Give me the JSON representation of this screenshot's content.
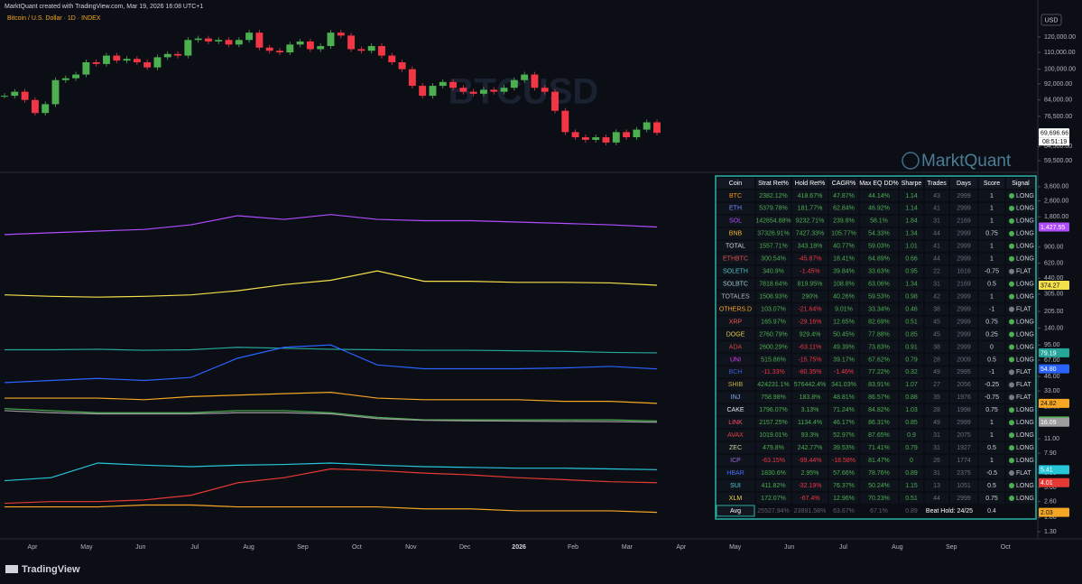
{
  "header": {
    "credit": "MarktQuant created with TradingView.com, Mar 19, 2026 16:08 UTC+1",
    "symbol": "Bitcoin / U.S. Dollar · 1D · INDEX"
  },
  "watermarks": {
    "symbol": "BTCUSD",
    "brand": "MarktQuant"
  },
  "currency": "USD",
  "footer": {
    "brand": "TradingView"
  },
  "price_pane": {
    "scale": "log",
    "ylim": [
      56000,
      148000
    ],
    "yticks": [
      {
        "value": 120000,
        "label": "120,000.00"
      },
      {
        "value": 110000,
        "label": "110,000.00"
      },
      {
        "value": 100000,
        "label": "100,000.00"
      },
      {
        "value": 92000,
        "label": "92,000.00"
      },
      {
        "value": 84000,
        "label": "84,000.00"
      },
      {
        "value": 76500,
        "label": "76,500.00"
      },
      {
        "value": 64500,
        "label": "64,500.00"
      },
      {
        "value": 59500,
        "label": "59,500.00"
      }
    ],
    "last_price": {
      "value": 69719.29,
      "label": "69,719.29"
    },
    "prev_price": {
      "value": 69696.66,
      "label": "69,696.66"
    },
    "countdown": "08:51:19",
    "up_color": "#4caf50",
    "down_color": "#f23645",
    "closes": [
      86000,
      88000,
      84000,
      78000,
      82000,
      94000,
      95000,
      97000,
      104000,
      103000,
      108000,
      105000,
      106000,
      104000,
      101000,
      107000,
      109000,
      108000,
      118000,
      119000,
      117000,
      118000,
      115000,
      118000,
      123000,
      113000,
      111000,
      110000,
      115000,
      117000,
      112000,
      114000,
      123000,
      121000,
      112000,
      111000,
      114000,
      108000,
      104000,
      100000,
      91000,
      86000,
      91000,
      93000,
      90000,
      88000,
      87000,
      89000,
      88000,
      90000,
      94000,
      97000,
      90000,
      88000,
      79000,
      70000,
      68000,
      67000,
      68000,
      66000,
      70000,
      68000,
      71000,
      74000,
      69719
    ]
  },
  "equity_pane": {
    "scale": "log",
    "ylim": [
      1.15,
      4900
    ],
    "yticks": [
      {
        "value": 3600,
        "label": "3,600.00"
      },
      {
        "value": 2600,
        "label": "2,600.00"
      },
      {
        "value": 1800,
        "label": "1,800.00"
      },
      {
        "value": 900,
        "label": "900.00"
      },
      {
        "value": 620,
        "label": "620.00"
      },
      {
        "value": 440,
        "label": "440.00"
      },
      {
        "value": 305,
        "label": "305.00"
      },
      {
        "value": 205,
        "label": "205.00"
      },
      {
        "value": 140,
        "label": "140.00"
      },
      {
        "value": 95,
        "label": "95.00"
      },
      {
        "value": 67,
        "label": "67.00"
      },
      {
        "value": 46,
        "label": "46.00"
      },
      {
        "value": 33,
        "label": "33.00"
      },
      {
        "value": 23,
        "label": "23.00"
      },
      {
        "value": 11,
        "label": "11.00"
      },
      {
        "value": 7.9,
        "label": "7.90"
      },
      {
        "value": 5,
        "label": "5.00"
      },
      {
        "value": 3.6,
        "label": "3.60"
      },
      {
        "value": 2.6,
        "label": "2.60"
      },
      {
        "value": 1.8,
        "label": "1.80"
      },
      {
        "value": 1.3,
        "label": "1.30"
      }
    ],
    "lines": [
      {
        "color": "#b04cff",
        "values": [
          1200,
          1250,
          1300,
          1350,
          1500,
          1850,
          1700,
          1900,
          1700,
          1650,
          1650,
          1600,
          1550,
          1500,
          1427.55
        ],
        "badge": {
          "value": 1427.55,
          "label": "1,427.55"
        }
      },
      {
        "color": "#f5e04a",
        "values": [
          300,
          290,
          285,
          290,
          300,
          330,
          380,
          420,
          520,
          410,
          410,
          400,
          400,
          395,
          374.27
        ],
        "badge": {
          "value": 374.27,
          "label": "374.27"
        }
      },
      {
        "color": "#26a69a",
        "values": [
          85,
          85,
          86,
          84,
          85,
          90,
          88,
          86,
          85,
          84,
          84,
          83,
          82,
          80,
          79.19
        ],
        "badge": {
          "value": 79.19,
          "label": "79.19"
        }
      },
      {
        "color": "#2962ff",
        "values": [
          40,
          42,
          44,
          42,
          45,
          70,
          90,
          95,
          60,
          55,
          55,
          55,
          56,
          58,
          54.8
        ],
        "badge": {
          "value": 54.8,
          "label": "54.80"
        }
      },
      {
        "color": "#f5a623",
        "values": [
          28,
          28,
          28,
          27,
          29,
          30,
          31,
          32,
          28,
          27,
          27,
          27,
          26,
          26,
          24.82
        ],
        "badge": {
          "value": 24.82,
          "label": "24.82"
        }
      },
      {
        "color": "#4caf50",
        "values": [
          22,
          21,
          20,
          20,
          20,
          21,
          21,
          20,
          18,
          17,
          17,
          17,
          17,
          17,
          16.58
        ],
        "badge": {
          "value": 16.58,
          "label": "16.58"
        }
      },
      {
        "color": "#9e9e9e",
        "values": [
          21,
          20,
          19.5,
          19.5,
          19.5,
          20,
          20,
          19.5,
          17.5,
          16.8,
          16.6,
          16.5,
          16.4,
          16.3,
          16.09
        ],
        "badge": {
          "value": 16.09,
          "label": "16.09"
        }
      },
      {
        "color": "#26c6da",
        "values": [
          4.2,
          4.5,
          6.3,
          6,
          5.8,
          6,
          6.1,
          6.3,
          6,
          5.8,
          5.7,
          5.6,
          5.6,
          5.5,
          5.41
        ],
        "badge": {
          "value": 5.41,
          "label": "5.41"
        }
      },
      {
        "color": "#e53935",
        "values": [
          2.5,
          2.6,
          2.6,
          2.7,
          3,
          4,
          4.5,
          5.5,
          5.3,
          5,
          4.8,
          4.5,
          4.3,
          4.1,
          4.01
        ],
        "badge": {
          "value": 4.01,
          "label": "4.01"
        }
      },
      {
        "color": "#f5a623",
        "values": [
          2.3,
          2.3,
          2.3,
          2.4,
          2.4,
          2.3,
          2.3,
          2.3,
          2.3,
          2.2,
          2.2,
          2.1,
          2.1,
          2.1,
          2.03
        ],
        "badge": {
          "value": 2.03,
          "label": "2.03"
        }
      }
    ]
  },
  "xaxis": {
    "labels": [
      "Apr",
      "May",
      "Jun",
      "Jul",
      "Aug",
      "Sep",
      "Oct",
      "Nov",
      "Dec",
      "2026",
      "Feb",
      "Mar",
      "Apr",
      "May",
      "Jun",
      "Jul",
      "Aug",
      "Sep",
      "Oct"
    ],
    "bold": "2026"
  },
  "table": {
    "columns": [
      "Coin",
      "Strat Ret%",
      "Hold Ret%",
      "CAGR%",
      "Max EQ DD%",
      "Sharpe",
      "Trades",
      "Days",
      "Score",
      "Signal"
    ],
    "coin_colors": [
      "#f7931a",
      "#7b8cff",
      "#b04cff",
      "#f3ba2f",
      "#d1d4dc",
      "#e0544f",
      "#4fc3c3",
      "#9ec9c9",
      "#b2b5be",
      "#f5a623",
      "#ef5350",
      "#e6c94c",
      "#d0453f",
      "#e040fb",
      "#3f5bd8",
      "#c9b037",
      "#8ab4f8",
      "#e8e8e8",
      "#ff4d6d",
      "#e84142",
      "#c8d6a0",
      "#9c6ade",
      "#4a6cf7",
      "#4fd1e0",
      "#f5d94a"
    ],
    "rows": [
      [
        "BTC",
        "2382.12%",
        "418.67%",
        "47.87%",
        "44.14%",
        "1.14",
        "43",
        "2999",
        "1",
        "LONG"
      ],
      [
        "ETH",
        "5379.78%",
        "181.77%",
        "62.84%",
        "46.92%",
        "1.14",
        "41",
        "2999",
        "1",
        "LONG"
      ],
      [
        "SOL",
        "142654.88%",
        "9232.71%",
        "239.8%",
        "58.1%",
        "1.84",
        "31",
        "2169",
        "1",
        "LONG"
      ],
      [
        "BNB",
        "37326.91%",
        "7427.33%",
        "105.77%",
        "54.33%",
        "1.34",
        "44",
        "2999",
        "0.75",
        "LONG"
      ],
      [
        "TOTAL",
        "1557.71%",
        "343.18%",
        "40.77%",
        "59.03%",
        "1.01",
        "41",
        "2999",
        "1",
        "LONG"
      ],
      [
        "ETHBTC",
        "300.54%",
        "-45.87%",
        "18.41%",
        "64.89%",
        "0.66",
        "44",
        "2999",
        "1",
        "LONG"
      ],
      [
        "SOLETH",
        "340.9%",
        "-1.45%",
        "39.84%",
        "33.63%",
        "0.95",
        "22",
        "1616",
        "-0.75",
        "FLAT"
      ],
      [
        "SOLBTC",
        "7818.64%",
        "819.95%",
        "108.8%",
        "63.06%",
        "1.34",
        "31",
        "2169",
        "0.5",
        "LONG"
      ],
      [
        "TOTALES",
        "1508.93%",
        "290%",
        "40.26%",
        "59.53%",
        "0.98",
        "42",
        "2999",
        "1",
        "LONG"
      ],
      [
        "OTHERS.D",
        "103.07%",
        "-21.64%",
        "9.01%",
        "33.34%",
        "0.46",
        "38",
        "2999",
        "-1",
        "FLAT"
      ],
      [
        "XRP",
        "165.97%",
        "-29.16%",
        "12.65%",
        "82.69%",
        "0.51",
        "45",
        "2999",
        "0.75",
        "LONG"
      ],
      [
        "DOGE",
        "2760.79%",
        "929.4%",
        "50.45%",
        "77.88%",
        "0.85",
        "45",
        "2999",
        "0.25",
        "LONG"
      ],
      [
        "ADA",
        "2600.29%",
        "-63.11%",
        "49.39%",
        "73.83%",
        "0.91",
        "38",
        "2999",
        "0",
        "LONG"
      ],
      [
        "UNI",
        "515.86%",
        "-15.75%",
        "39.17%",
        "67.62%",
        "0.79",
        "28",
        "2009",
        "0.5",
        "LONG"
      ],
      [
        "BCH",
        "-11.33%",
        "-80.35%",
        "-1.46%",
        "77.22%",
        "0.32",
        "49",
        "2995",
        "-1",
        "FLAT"
      ],
      [
        "SHIB",
        "424231.1%",
        "576442.4%",
        "341.03%",
        "83.91%",
        "1.07",
        "27",
        "2056",
        "-0.25",
        "FLAT"
      ],
      [
        "INJ",
        "758.98%",
        "183.8%",
        "48.81%",
        "86.57%",
        "0.88",
        "35",
        "1976",
        "-0.75",
        "FLAT"
      ],
      [
        "CAKE",
        "1796.07%",
        "3.13%",
        "71.24%",
        "84.82%",
        "1.03",
        "28",
        "1998",
        "0.75",
        "LONG"
      ],
      [
        "LINK",
        "2157.25%",
        "1134.4%",
        "46.17%",
        "86.31%",
        "0.85",
        "49",
        "2999",
        "1",
        "LONG"
      ],
      [
        "AVAX",
        "1019.01%",
        "93.3%",
        "52.97%",
        "87.65%",
        "0.9",
        "31",
        "2075",
        "1",
        "LONG"
      ],
      [
        "ZEC",
        "479.8%",
        "242.77%",
        "39.53%",
        "71.41%",
        "0.79",
        "31",
        "1927",
        "0.5",
        "LONG"
      ],
      [
        "ICP",
        "-63.15%",
        "-99.44%",
        "-18.58%",
        "81.47%",
        "0",
        "26",
        "1774",
        "1",
        "LONG"
      ],
      [
        "HBAR",
        "1830.6%",
        "2.95%",
        "57.66%",
        "78.76%",
        "0.89",
        "31",
        "2375",
        "-0.5",
        "FLAT"
      ],
      [
        "SUI",
        "411.82%",
        "-32.19%",
        "76.37%",
        "50.24%",
        "1.15",
        "13",
        "1051",
        "0.5",
        "LONG"
      ],
      [
        "XLM",
        "172.07%",
        "-67.4%",
        "12.96%",
        "70.23%",
        "0.51",
        "44",
        "2999",
        "0.75",
        "LONG"
      ]
    ],
    "avg": {
      "label": "Avg",
      "values": [
        "25527.94%",
        "23891.58%",
        "63.67%",
        "67.1%",
        "0.89"
      ],
      "beat": "Beat Hold: 24/25",
      "score": "0.4"
    }
  }
}
